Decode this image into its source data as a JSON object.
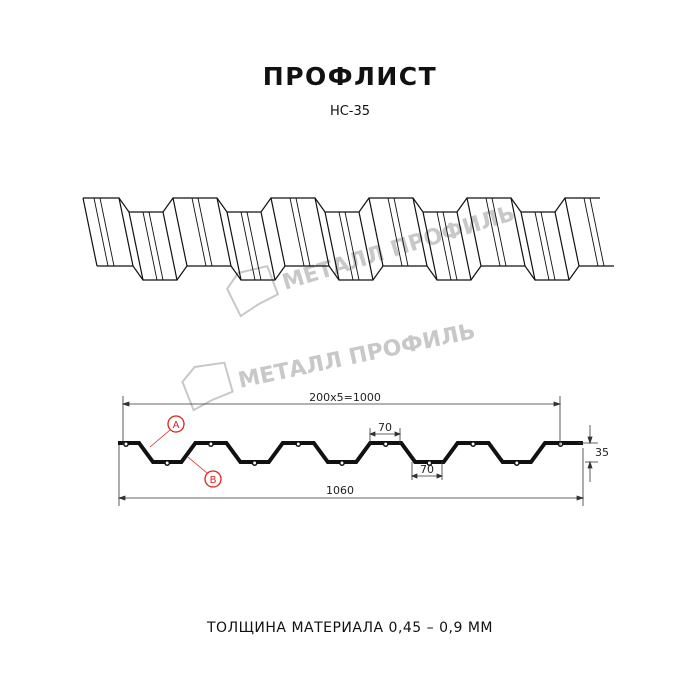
{
  "title": "ПРОФЛИСТ",
  "subtitle": "НС-35",
  "watermark": "МЕТАЛЛ ПРОФИЛЬ",
  "dimensions": {
    "pitch_total": "200x5=1000",
    "full_width": "1060",
    "ridge_width": "70",
    "valley_width": "70",
    "height": "35"
  },
  "markers": {
    "a": "A",
    "b": "B"
  },
  "footer": "ТОЛЩИНА МАТЕРИАЛА 0,45 – 0,9 ММ",
  "colors": {
    "line": "#111111",
    "marker": "#e0201c",
    "watermark": "#c8c8c8"
  }
}
